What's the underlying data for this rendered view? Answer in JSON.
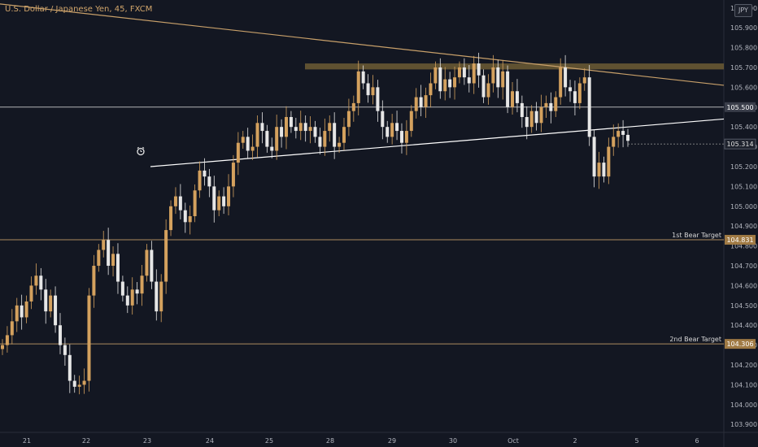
{
  "header": {
    "title": "U.S. Dollar / Japanese Yen, 45, FXCM",
    "currency": "JPY"
  },
  "colors": {
    "background": "#131722",
    "candle_up": "#d4a15e",
    "candle_down": "#e6e6e6",
    "target_line": "#c8a06a",
    "resistance_line": "#c8a06a",
    "support_line": "#ffffff",
    "level_line": "#d0d0d0"
  },
  "icons": {
    "alert": "alarm-clock-icon"
  },
  "chart_data": {
    "type": "candlestick",
    "ylim": [
      103.86,
      106.04
    ],
    "y_ticks": [
      "103.900",
      "104.000",
      "104.100",
      "104.200",
      "104.300",
      "104.400",
      "104.500",
      "104.600",
      "104.700",
      "104.800",
      "104.900",
      "105.000",
      "105.100",
      "105.200",
      "105.300",
      "105.400",
      "105.500",
      "105.600",
      "105.700",
      "105.800",
      "105.900",
      "106.000"
    ],
    "x_ticks": [
      "21",
      "22",
      "23",
      "24",
      "25",
      "28",
      "29",
      "30",
      "Oct",
      "2",
      "5",
      "6"
    ],
    "series_close": [
      104.3,
      104.35,
      104.42,
      104.5,
      104.44,
      104.52,
      104.6,
      104.65,
      104.58,
      104.47,
      104.55,
      104.4,
      104.3,
      104.25,
      104.12,
      104.09,
      104.1,
      104.12,
      104.55,
      104.7,
      104.78,
      104.83,
      104.7,
      104.76,
      104.62,
      104.55,
      104.5,
      104.58,
      104.56,
      104.65,
      104.78,
      104.62,
      104.47,
      104.62,
      104.88,
      105.0,
      105.05,
      104.98,
      104.92,
      104.95,
      105.08,
      105.18,
      105.15,
      105.1,
      104.98,
      105.05,
      105.0,
      105.1,
      105.22,
      105.32,
      105.35,
      105.28,
      105.3,
      105.42,
      105.38,
      105.3,
      105.28,
      105.4,
      105.35,
      105.45,
      105.4,
      105.38,
      105.42,
      105.38,
      105.4,
      105.35,
      105.3,
      105.38,
      105.42,
      105.3,
      105.32,
      105.4,
      105.48,
      105.52,
      105.68,
      105.62,
      105.56,
      105.6,
      105.48,
      105.4,
      105.35,
      105.42,
      105.38,
      105.32,
      105.38,
      105.48,
      105.55,
      105.5,
      105.56,
      105.62,
      105.7,
      105.58,
      105.64,
      105.6,
      105.65,
      105.7,
      105.65,
      105.62,
      105.72,
      105.66,
      105.55,
      105.62,
      105.7,
      105.6,
      105.68,
      105.5,
      105.58,
      105.52,
      105.45,
      105.4,
      105.48,
      105.42,
      105.5,
      105.52,
      105.48,
      105.55,
      105.7,
      105.6,
      105.58,
      105.52,
      105.62,
      105.65,
      105.35,
      105.15,
      105.22,
      105.15,
      105.3,
      105.35,
      105.38,
      105.36,
      105.33
    ],
    "lines": [
      {
        "label": "",
        "value": 105.5,
        "tag": "105.500"
      },
      {
        "label": "1st Bear Target",
        "value": 104.831,
        "tag": "104.831"
      },
      {
        "label": "2nd Bear Target",
        "value": 104.306,
        "tag": "104.306"
      }
    ],
    "last_price": "105.314",
    "resistance_zone": [
      105.69,
      105.72
    ],
    "trendlines": [
      {
        "name": "descending-resistance",
        "from": [
          0,
          106.02
        ],
        "to": [
          890,
          105.61
        ]
      },
      {
        "name": "ascending-support",
        "from": [
          185,
          105.2
        ],
        "to": [
          890,
          105.44
        ]
      }
    ]
  }
}
